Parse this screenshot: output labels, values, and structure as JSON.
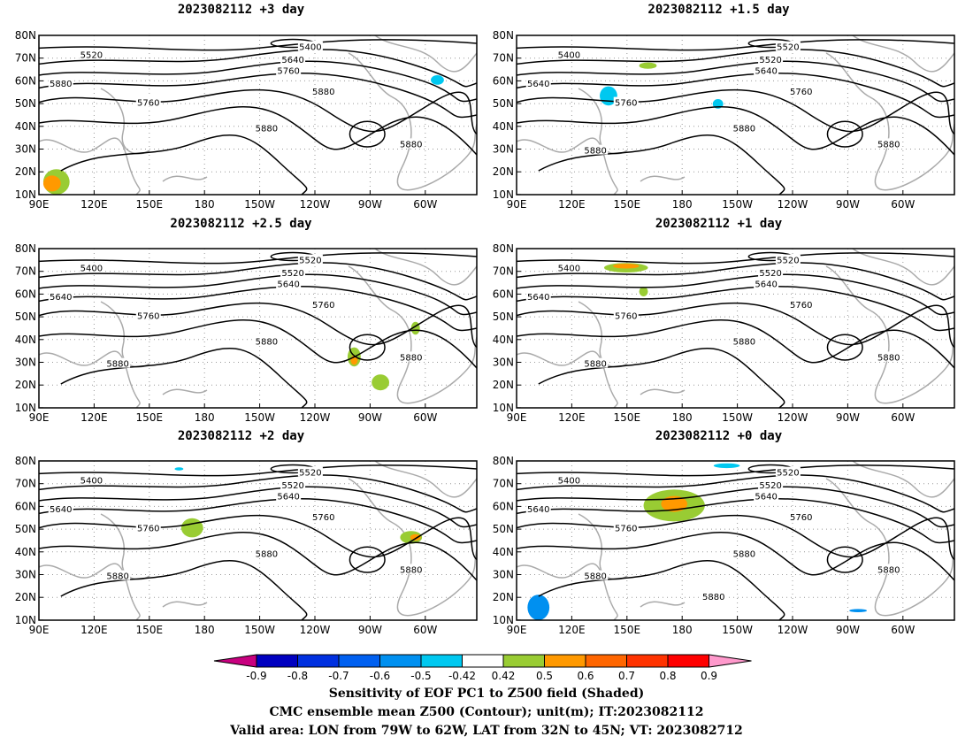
{
  "panels": [
    {
      "title": "2023082112  +3 day",
      "contour_labels": [
        "5400",
        "5520",
        "5640",
        "5760",
        "5880",
        "5760",
        "5880",
        "5880",
        "5880"
      ]
    },
    {
      "title": "2023082112  +1.5 day",
      "contour_labels": [
        "5520",
        "5400",
        "5520",
        "5640",
        "5640",
        "5760",
        "5760",
        "5880",
        "5880",
        "5880"
      ]
    },
    {
      "title": "2023082112  +2.5 day",
      "contour_labels": [
        "5520",
        "5400",
        "5520",
        "5640",
        "5640",
        "5760",
        "5760",
        "5880",
        "5880",
        "5880"
      ]
    },
    {
      "title": "2023082112  +1 day",
      "contour_labels": [
        "5520",
        "5400",
        "5520",
        "5640",
        "5640",
        "5760",
        "5760",
        "5880",
        "5880",
        "5880"
      ]
    },
    {
      "title": "2023082112  +2 day",
      "contour_labels": [
        "5520",
        "5400",
        "5520",
        "5640",
        "5640",
        "5760",
        "5760",
        "5880",
        "5880",
        "5880"
      ]
    },
    {
      "title": "2023082112  +0 day",
      "contour_labels": [
        "5520",
        "5400",
        "5520",
        "5640",
        "5640",
        "5760",
        "5760",
        "5880",
        "5880",
        "5880",
        "5880"
      ]
    }
  ],
  "axes": {
    "lat_labels": [
      "80N",
      "70N",
      "60N",
      "50N",
      "40N",
      "30N",
      "20N",
      "10N"
    ],
    "lon_labels": [
      "90E",
      "120E",
      "150E",
      "180",
      "150W",
      "120W",
      "90W",
      "60W"
    ]
  },
  "colorbar": {
    "labels": [
      "-0.9",
      "-0.8",
      "-0.7",
      "-0.6",
      "-0.5",
      "-0.42",
      "0.42",
      "0.5",
      "0.6",
      "0.7",
      "0.8",
      "0.9"
    ],
    "colors": [
      "#c8007f",
      "#0000c0",
      "#0030e0",
      "#0060f0",
      "#0090f0",
      "#00c8f0",
      "#ffffff",
      "#99cc33",
      "#ff9900",
      "#ff6600",
      "#ff3300",
      "#ff0000",
      "#ff99cc"
    ]
  },
  "footer": {
    "line1": "Sensitivity of EOF PC1 to Z500 field (Shaded)",
    "line2": "CMC ensemble mean Z500 (Contour); unit(m); IT:2023082112",
    "line3": "Valid area: LON from 79W to 62W, LAT from 32N to 45N; VT: 2023082712"
  }
}
